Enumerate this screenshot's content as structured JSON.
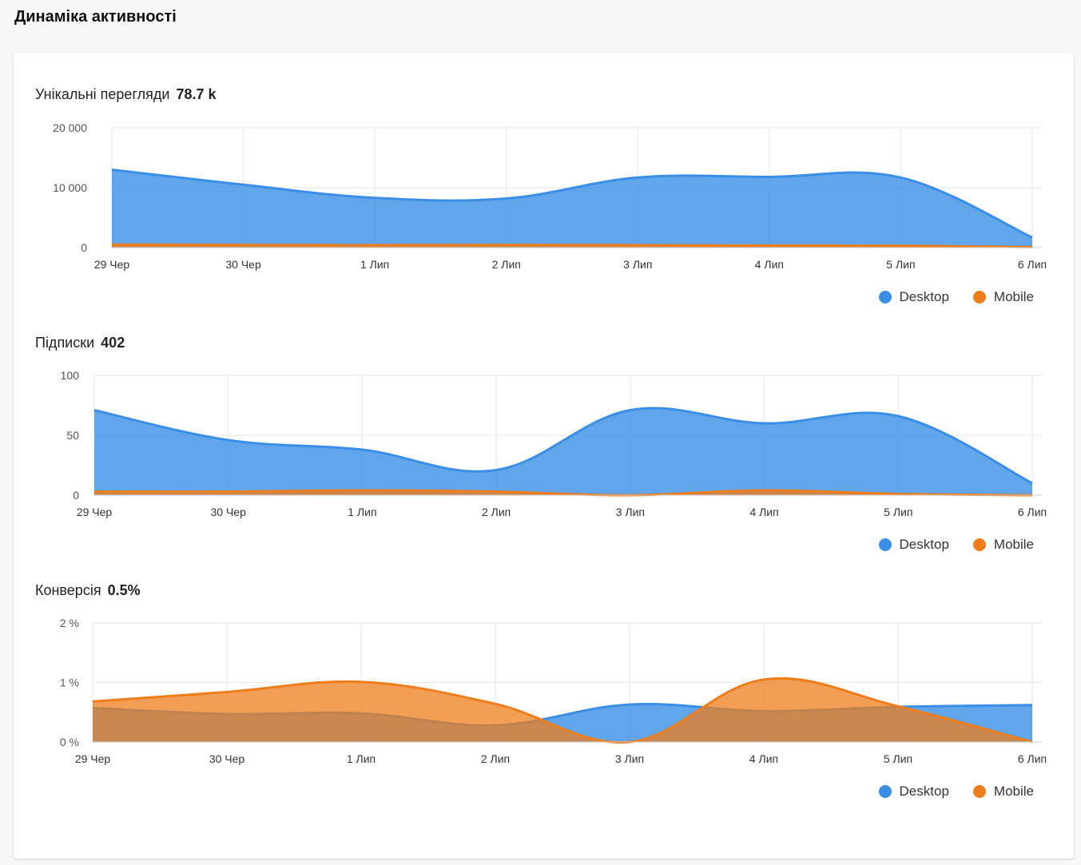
{
  "page": {
    "title": "Динаміка активності"
  },
  "colors": {
    "desktop": "#3a8ee6",
    "mobile": "#ee7d1c"
  },
  "legend": {
    "desktop": "Desktop",
    "mobile": "Mobile"
  },
  "charts": [
    {
      "label": "Унікальні перегляди",
      "value": "78.7 k",
      "x_labels": [
        "29 Чер",
        "30 Чер",
        "1 Лип",
        "2 Лип",
        "3 Лип",
        "4 Лип",
        "5 Лип",
        "6 Лип"
      ],
      "y_ticks": [
        "20 000",
        "10 000",
        "0"
      ]
    },
    {
      "label": "Підписки",
      "value": "402",
      "x_labels": [
        "29 Чер",
        "30 Чер",
        "1 Лип",
        "2 Лип",
        "3 Лип",
        "4 Лип",
        "5 Лип",
        "6 Лип"
      ],
      "y_ticks": [
        "100",
        "50",
        "0"
      ]
    },
    {
      "label": "Конверсія",
      "value": "0.5%",
      "x_labels": [
        "29 Чер",
        "30 Чер",
        "1 Лип",
        "2 Лип",
        "3 Лип",
        "4 Лип",
        "5 Лип",
        "6 Лип"
      ],
      "y_ticks": [
        "2 %",
        "1 %",
        "0 %"
      ]
    }
  ],
  "chart_data": [
    {
      "type": "area",
      "categories": [
        "29 Чер",
        "30 Чер",
        "1 Лип",
        "2 Лип",
        "3 Лип",
        "4 Лип",
        "5 Лип",
        "6 Лип"
      ],
      "ylim": [
        0,
        20000
      ],
      "grid": true,
      "legend_position": "bottom-right",
      "series": [
        {
          "name": "Desktop",
          "values": [
            13000,
            10500,
            8300,
            8200,
            11700,
            11800,
            11700,
            1700
          ]
        },
        {
          "name": "Mobile",
          "values": [
            500,
            450,
            400,
            450,
            400,
            350,
            300,
            100
          ]
        }
      ]
    },
    {
      "type": "area",
      "categories": [
        "29 Чер",
        "30 Чер",
        "1 Лип",
        "2 Лип",
        "3 Лип",
        "4 Лип",
        "5 Лип",
        "6 Лип"
      ],
      "ylim": [
        0,
        100
      ],
      "grid": true,
      "legend_position": "bottom-right",
      "series": [
        {
          "name": "Desktop",
          "values": [
            71,
            46,
            38,
            21,
            71,
            60,
            66,
            10
          ]
        },
        {
          "name": "Mobile",
          "values": [
            3,
            3,
            4,
            3,
            0,
            4,
            1,
            0
          ]
        }
      ]
    },
    {
      "type": "area",
      "categories": [
        "29 Чер",
        "30 Чер",
        "1 Лип",
        "2 Лип",
        "3 Лип",
        "4 Лип",
        "5 Лип",
        "6 Лип"
      ],
      "ylim": [
        0,
        2
      ],
      "y_unit": "%",
      "grid": true,
      "legend_position": "bottom-right",
      "series": [
        {
          "name": "Desktop",
          "values": [
            0.57,
            0.47,
            0.48,
            0.28,
            0.63,
            0.52,
            0.59,
            0.62
          ]
        },
        {
          "name": "Mobile",
          "values": [
            0.68,
            0.84,
            1.01,
            0.64,
            0.0,
            1.05,
            0.6,
            0.0
          ]
        }
      ]
    }
  ]
}
